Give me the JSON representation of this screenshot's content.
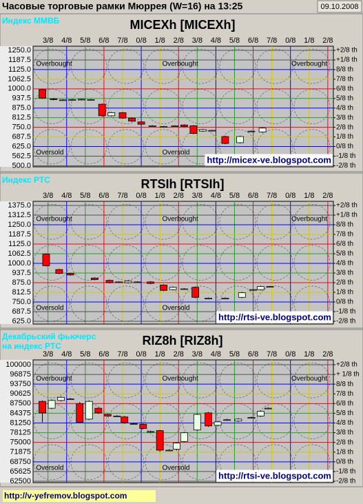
{
  "header": {
    "title": "Часовые торговые рамки Мюррея (W=16) на 13:25",
    "date": "09.10.2008"
  },
  "footer": {
    "url": "http://v-yefremov.blogspot.com"
  },
  "chart_data": [
    {
      "type": "candlestick",
      "subtitle": "Индекс ММВБ",
      "title": "MICEXh [MICEXh]",
      "url": "http://micex-ve.blogspot.com",
      "overbought": "Overbought",
      "oversold": "Oversold",
      "xlim": [
        -0.8,
        15.3
      ],
      "xticks": [
        {
          "value": 0,
          "label": "3/8"
        },
        {
          "value": 1,
          "label": "4/8"
        },
        {
          "value": 2,
          "label": "5/8"
        },
        {
          "value": 3,
          "label": "6/8"
        },
        {
          "value": 4,
          "label": "7/8"
        },
        {
          "value": 5,
          "label": "0/8"
        },
        {
          "value": 6,
          "label": "1/8"
        },
        {
          "value": 7,
          "label": "2/8"
        },
        {
          "value": 8,
          "label": "3/8"
        },
        {
          "value": 9,
          "label": "4/8"
        },
        {
          "value": 10,
          "label": "5/8"
        },
        {
          "value": 11,
          "label": "6/8"
        },
        {
          "value": 12,
          "label": "7/8"
        },
        {
          "value": 13,
          "label": "0/8"
        },
        {
          "value": 14,
          "label": "1/8"
        },
        {
          "value": 15,
          "label": "2/8"
        }
      ],
      "column_colors": [
        "#2e9a2e",
        "#0000ff",
        "#2e9a2e",
        "#ff0000",
        "#d8c800",
        "#0000ff",
        "#d8c800",
        "#ff0000",
        "#2e9a2e",
        "#0000ff",
        "#2e9a2e",
        "#ff0000",
        "#d8c800",
        "#0000ff",
        "#d8c800",
        "#ff0000"
      ],
      "ylim": [
        493,
        1277
      ],
      "yticks": [
        {
          "value": 1250,
          "label": "1250.0"
        },
        {
          "value": 1187.5,
          "label": "1187.5"
        },
        {
          "value": 1125,
          "label": "1125.0"
        },
        {
          "value": 1062.5,
          "label": "1062.5"
        },
        {
          "value": 1000,
          "label": "1000.0"
        },
        {
          "value": 937.5,
          "label": "937.5"
        },
        {
          "value": 875,
          "label": "875.0"
        },
        {
          "value": 812.5,
          "label": "812.5"
        },
        {
          "value": 750,
          "label": "750.0"
        },
        {
          "value": 687.5,
          "label": "687.5"
        },
        {
          "value": 625,
          "label": "625.0"
        },
        {
          "value": 562.5,
          "label": "562.5"
        },
        {
          "value": 500,
          "label": "500.0"
        }
      ],
      "y2lim": [
        493,
        1277
      ],
      "y2ticks": [
        {
          "value": 1250,
          "label": "+2/8 th"
        },
        {
          "value": 1187.5,
          "label": "+1/8 th"
        },
        {
          "value": 1125,
          "label": "8/8 th"
        },
        {
          "value": 1062.5,
          "label": "7/8 th"
        },
        {
          "value": 1000,
          "label": "6/8 th"
        },
        {
          "value": 937.5,
          "label": "5/8 th"
        },
        {
          "value": 875,
          "label": "4/8 th"
        },
        {
          "value": 812.5,
          "label": "3/8 th"
        },
        {
          "value": 750,
          "label": "2/8 th"
        },
        {
          "value": 687.5,
          "label": "1/8 th"
        },
        {
          "value": 625,
          "label": "0/8 th"
        },
        {
          "value": 562.5,
          "label": "-1/8 th"
        },
        {
          "value": 500,
          "label": "-2/8 th"
        }
      ],
      "level_colors": [
        "#505050",
        "#505050",
        "#0000ff",
        "#d8c800",
        "#ff0000",
        "#2e9a2e",
        "#0000ff",
        "#2e9a2e",
        "#ff0000",
        "#d8c800",
        "#0000ff",
        "#505050",
        "#505050"
      ],
      "colors": {
        "up": "#e8ffe8",
        "down": "#ff0000"
      },
      "x": [
        -0.3,
        0.3,
        0.8,
        1.3,
        1.8,
        2.3,
        2.9,
        3.4,
        4.0,
        4.5,
        5.0,
        5.6,
        6.2,
        6.8,
        7.3,
        7.8,
        8.3,
        8.8,
        9.5,
        10.3,
        10.9,
        11.5
      ],
      "open": [
        995,
        935,
        928,
        930,
        932,
        930,
        900,
        825,
        845,
        810,
        785,
        760,
        755,
        760,
        765,
        760,
        725,
        730,
        690,
        650,
        725,
        720
      ],
      "high": [
        1000,
        940,
        932,
        934,
        936,
        934,
        905,
        850,
        850,
        815,
        790,
        764,
        759,
        764,
        770,
        765,
        740,
        734,
        695,
        695,
        729,
        750
      ],
      "low": [
        935,
        925,
        924,
        926,
        928,
        926,
        820,
        820,
        805,
        785,
        765,
        756,
        751,
        756,
        750,
        705,
        720,
        726,
        640,
        645,
        721,
        715
      ],
      "close": [
        940,
        930,
        928,
        930,
        932,
        930,
        825,
        845,
        810,
        790,
        770,
        760,
        755,
        760,
        755,
        710,
        735,
        730,
        645,
        690,
        725,
        745
      ]
    },
    {
      "type": "candlestick",
      "subtitle": "Индекс РТС",
      "title": "RTSIh [RTSIh]",
      "url": "http://rtsi-ve.blogspot.com",
      "overbought": "Overbought",
      "oversold": "Oversold",
      "xlim": [
        -0.8,
        15.3
      ],
      "xticks": [
        {
          "value": 0,
          "label": "3/8"
        },
        {
          "value": 1,
          "label": "4/8"
        },
        {
          "value": 2,
          "label": "5/8"
        },
        {
          "value": 3,
          "label": "6/8"
        },
        {
          "value": 4,
          "label": "7/8"
        },
        {
          "value": 5,
          "label": "0/8"
        },
        {
          "value": 6,
          "label": "1/8"
        },
        {
          "value": 7,
          "label": "2/8"
        },
        {
          "value": 8,
          "label": "3/8"
        },
        {
          "value": 9,
          "label": "4/8"
        },
        {
          "value": 10,
          "label": "5/8"
        },
        {
          "value": 11,
          "label": "6/8"
        },
        {
          "value": 12,
          "label": "7/8"
        },
        {
          "value": 13,
          "label": "0/8"
        },
        {
          "value": 14,
          "label": "1/8"
        },
        {
          "value": 15,
          "label": "2/8"
        }
      ],
      "column_colors": [
        "#2e9a2e",
        "#0000ff",
        "#2e9a2e",
        "#ff0000",
        "#d8c800",
        "#0000ff",
        "#d8c800",
        "#ff0000",
        "#2e9a2e",
        "#0000ff",
        "#2e9a2e",
        "#ff0000",
        "#d8c800",
        "#0000ff",
        "#d8c800",
        "#ff0000"
      ],
      "ylim": [
        607,
        1402
      ],
      "yticks": [
        {
          "value": 1375,
          "label": "1375.0"
        },
        {
          "value": 1312.5,
          "label": "1312.5"
        },
        {
          "value": 1250,
          "label": "1250.0"
        },
        {
          "value": 1187.5,
          "label": "1187.5"
        },
        {
          "value": 1125,
          "label": "1125.0"
        },
        {
          "value": 1062.5,
          "label": "1062.5"
        },
        {
          "value": 1000,
          "label": "1000.0"
        },
        {
          "value": 937.5,
          "label": "937.5"
        },
        {
          "value": 875,
          "label": "875.0"
        },
        {
          "value": 812.5,
          "label": "812.5"
        },
        {
          "value": 750,
          "label": "750.0"
        },
        {
          "value": 687.5,
          "label": "687.5"
        },
        {
          "value": 625,
          "label": "625.0"
        }
      ],
      "y2lim": [
        607,
        1402
      ],
      "y2ticks": [
        {
          "value": 1375,
          "label": "+2/8 th"
        },
        {
          "value": 1312.5,
          "label": "+1/8 th"
        },
        {
          "value": 1250,
          "label": "8/8 th"
        },
        {
          "value": 1187.5,
          "label": "7/8 th"
        },
        {
          "value": 1125,
          "label": "6/8 th"
        },
        {
          "value": 1062.5,
          "label": "5/8 th"
        },
        {
          "value": 1000,
          "label": "4/8 th"
        },
        {
          "value": 937.5,
          "label": "3/8 th"
        },
        {
          "value": 875,
          "label": "2/8 th"
        },
        {
          "value": 812.5,
          "label": "1/8 th"
        },
        {
          "value": 750,
          "label": "0/8 th"
        },
        {
          "value": 687.5,
          "label": "-1/8 th"
        },
        {
          "value": 625,
          "label": "-2/8 th"
        }
      ],
      "level_colors": [
        "#505050",
        "#505050",
        "#0000ff",
        "#d8c800",
        "#ff0000",
        "#2e9a2e",
        "#0000ff",
        "#2e9a2e",
        "#ff0000",
        "#d8c800",
        "#0000ff",
        "#505050",
        "#505050"
      ],
      "colors": {
        "up": "#e8ffe8",
        "down": "#ff0000"
      },
      "x": [
        -0.1,
        0.6,
        1.2,
        2.5,
        3.3,
        3.8,
        4.3,
        4.8,
        5.5,
        6.2,
        6.7,
        7.3,
        7.9,
        8.6,
        9.5,
        10.4,
        11.0,
        11.4,
        11.9
      ],
      "open": [
        1060,
        960,
        935,
        905,
        890,
        880,
        875,
        880,
        880,
        860,
        830,
        835,
        845,
        775,
        775,
        780,
        830,
        830,
        850
      ],
      "high": [
        1065,
        965,
        940,
        910,
        895,
        884,
        890,
        884,
        885,
        865,
        850,
        839,
        850,
        779,
        779,
        815,
        834,
        855,
        854
      ],
      "low": [
        980,
        930,
        920,
        890,
        870,
        876,
        870,
        876,
        865,
        820,
        825,
        831,
        775,
        771,
        771,
        775,
        826,
        825,
        846
      ],
      "close": [
        985,
        935,
        925,
        895,
        875,
        880,
        885,
        880,
        870,
        825,
        845,
        835,
        780,
        775,
        775,
        810,
        830,
        850,
        850
      ]
    },
    {
      "type": "candlestick",
      "subtitle": [
        "Декабрьский фьючерс",
        "на индекс РТС"
      ],
      "title": "RIZ8h [RIZ8h]",
      "url": "http://rtsi-ve.blogspot.com",
      "overbought": "Overbought",
      "oversold": "Oversold",
      "xlim": [
        -0.8,
        15.3
      ],
      "xticks": [
        {
          "value": 0,
          "label": "3/8"
        },
        {
          "value": 1,
          "label": "4/8"
        },
        {
          "value": 2,
          "label": "5/8"
        },
        {
          "value": 3,
          "label": "6/8"
        },
        {
          "value": 4,
          "label": "7/8"
        },
        {
          "value": 5,
          "label": "0/8"
        },
        {
          "value": 6,
          "label": "1/8"
        },
        {
          "value": 7,
          "label": "2/8"
        },
        {
          "value": 8,
          "label": "3/8"
        },
        {
          "value": 9,
          "label": "4/8"
        },
        {
          "value": 10,
          "label": "5/8"
        },
        {
          "value": 11,
          "label": "6/8"
        },
        {
          "value": 12,
          "label": "7/8"
        },
        {
          "value": 13,
          "label": "0/8"
        },
        {
          "value": 14,
          "label": "1/8"
        },
        {
          "value": 15,
          "label": "2/8"
        }
      ],
      "column_colors": [
        "#2e9a2e",
        "#0000ff",
        "#2e9a2e",
        "#ff0000",
        "#d8c800",
        "#0000ff",
        "#d8c800",
        "#ff0000",
        "#2e9a2e",
        "#0000ff",
        "#2e9a2e",
        "#ff0000",
        "#d8c800",
        "#0000ff",
        "#d8c800",
        "#ff0000"
      ],
      "ylim": [
        62060,
        101550
      ],
      "yticks": [
        100000,
        96875,
        93750,
        90625,
        87500,
        84375,
        81250,
        78125,
        75000,
        71875,
        68750,
        65625,
        62500
      ],
      "y2lim": [
        62060,
        101550
      ],
      "y2ticks": [
        {
          "value": 100000,
          "label": "+2/8 th"
        },
        {
          "value": 96875,
          "label": "+ 1/8 th"
        },
        {
          "value": 93750,
          "label": "8/8 th"
        },
        {
          "value": 90625,
          "label": "7/8 th"
        },
        {
          "value": 87500,
          "label": "6/8 th"
        },
        {
          "value": 84375,
          "label": "5/8 th"
        },
        {
          "value": 81250,
          "label": "4/8 th"
        },
        {
          "value": 78125,
          "label": "3/8 th"
        },
        {
          "value": 75000,
          "label": "2/8 th"
        },
        {
          "value": 71875,
          "label": "1/8 th"
        },
        {
          "value": 68750,
          "label": "0/8 th"
        },
        {
          "value": 65625,
          "label": "-1/8 th"
        },
        {
          "value": 62500,
          "label": "-2/8 th"
        }
      ],
      "level_colors": [
        "#505050",
        "#505050",
        "#0000ff",
        "#d8c800",
        "#ff0000",
        "#2e9a2e",
        "#0000ff",
        "#2e9a2e",
        "#ff0000",
        "#d8c800",
        "#0000ff",
        "#505050",
        "#505050"
      ],
      "colors": {
        "up": "#e8ffe8",
        "down": "#ff0000"
      },
      "x": [
        -0.3,
        0.2,
        0.7,
        1.2,
        1.7,
        2.2,
        2.7,
        3.2,
        3.7,
        4.1,
        4.6,
        5.1,
        5.5,
        6.0,
        6.5,
        6.9,
        7.3,
        8.0,
        8.6,
        9.1,
        9.6,
        10.2,
        10.9,
        11.4,
        11.8
      ],
      "open": [
        88200,
        86000,
        88500,
        89000,
        87500,
        82500,
        86000,
        84000,
        83500,
        83200,
        81000,
        80800,
        78500,
        78800,
        72500,
        72800,
        75300,
        79000,
        84500,
        80500,
        82300,
        81900,
        83000,
        83500,
        86000
      ],
      "high": [
        88500,
        88800,
        89800,
        89300,
        88000,
        88500,
        86300,
        84300,
        83800,
        83500,
        81300,
        81100,
        78800,
        79000,
        72800,
        75100,
        78400,
        84300,
        84800,
        81900,
        82600,
        82800,
        83300,
        85300,
        86300
      ],
      "low": [
        81500,
        85700,
        88200,
        88700,
        81200,
        82200,
        84200,
        83200,
        83200,
        81000,
        80700,
        79200,
        78200,
        72000,
        72200,
        72500,
        75000,
        78700,
        80000,
        80200,
        82000,
        81600,
        82700,
        83200,
        85700
      ],
      "close": [
        84500,
        88500,
        89500,
        89000,
        81500,
        88200,
        84500,
        83500,
        83500,
        81300,
        81000,
        79500,
        78500,
        72500,
        72500,
        74800,
        78100,
        84000,
        80300,
        81600,
        82300,
        82500,
        83000,
        85000,
        86000
      ]
    }
  ]
}
